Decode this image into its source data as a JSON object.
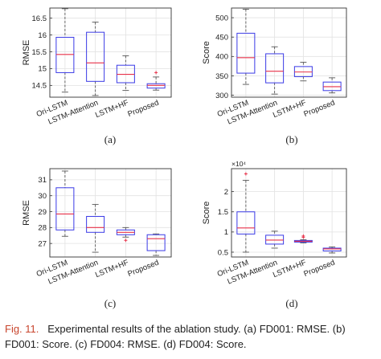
{
  "colors": {
    "box": "#3a3ae6",
    "median": "#e8324a",
    "whisker": "#555555",
    "outlier": "#e8324a",
    "caption_label": "#c8452d"
  },
  "caption": {
    "label": "Fig. 11.",
    "text": "Experimental results of the ablation study. (a) FD001: RMSE. (b) FD001: Score. (c) FD004: RMSE. (d) FD004: Score."
  },
  "chart_data": [
    {
      "type": "box",
      "panel": "(a)",
      "ylabel": "RMSE",
      "ylim": [
        14.15,
        16.8
      ],
      "yticks": [
        14.5,
        15,
        15.5,
        16,
        16.5
      ],
      "ytick_labels": [
        "14.5",
        "15",
        "15.5",
        "16",
        "16.5"
      ],
      "categories": [
        "Ori-LSTM",
        "LSTM-Attention",
        "LSTM+HF",
        "Proposed"
      ],
      "boxes": [
        {
          "min": 14.3,
          "q1": 14.88,
          "median": 15.42,
          "q3": 15.93,
          "max": 16.78,
          "outliers": []
        },
        {
          "min": 14.2,
          "q1": 14.62,
          "median": 15.17,
          "q3": 16.08,
          "max": 16.38,
          "outliers": []
        },
        {
          "min": 14.35,
          "q1": 14.58,
          "median": 14.83,
          "q3": 15.1,
          "max": 15.38,
          "outliers": []
        },
        {
          "min": 14.36,
          "q1": 14.42,
          "median": 14.5,
          "q3": 14.55,
          "max": 14.75,
          "outliers": [
            14.88
          ]
        }
      ]
    },
    {
      "type": "box",
      "panel": "(b)",
      "ylabel": "Score",
      "ylim": [
        295,
        525
      ],
      "yticks": [
        300,
        350,
        400,
        450,
        500
      ],
      "ytick_labels": [
        "300",
        "350",
        "400",
        "450",
        "500"
      ],
      "categories": [
        "Ori-LSTM",
        "LSTM-Attention",
        "LSTM+HF",
        "Proposed"
      ],
      "boxes": [
        {
          "min": 328,
          "q1": 357,
          "median": 397,
          "q3": 460,
          "max": 522,
          "outliers": []
        },
        {
          "min": 303,
          "q1": 332,
          "median": 362,
          "q3": 407,
          "max": 425,
          "outliers": []
        },
        {
          "min": 337,
          "q1": 348,
          "median": 360,
          "q3": 374,
          "max": 385,
          "outliers": []
        },
        {
          "min": 306,
          "q1": 312,
          "median": 322,
          "q3": 334,
          "max": 345,
          "outliers": []
        }
      ]
    },
    {
      "type": "box",
      "panel": "(c)",
      "ylabel": "RMSE",
      "ylim": [
        26.15,
        31.7
      ],
      "yticks": [
        27,
        28,
        29,
        30,
        31
      ],
      "ytick_labels": [
        "27",
        "28",
        "29",
        "30",
        "31"
      ],
      "categories": [
        "Ori-LSTM",
        "LSTM-Attention",
        "LSTM+HF",
        "Proposed"
      ],
      "boxes": [
        {
          "min": 27.45,
          "q1": 27.85,
          "median": 28.85,
          "q3": 30.5,
          "max": 31.55,
          "outliers": []
        },
        {
          "min": 26.45,
          "q1": 27.7,
          "median": 28.0,
          "q3": 28.7,
          "max": 29.45,
          "outliers": []
        },
        {
          "min": 27.4,
          "q1": 27.55,
          "median": 27.7,
          "q3": 27.85,
          "max": 28.0,
          "outliers": [
            27.2
          ]
        },
        {
          "min": 26.25,
          "q1": 26.55,
          "median": 27.3,
          "q3": 27.55,
          "max": 27.6,
          "outliers": []
        }
      ]
    },
    {
      "type": "box",
      "panel": "(d)",
      "ylabel": "Score",
      "ylim": [
        0.38,
        2.57
      ],
      "yticks": [
        0.5,
        1,
        1.5,
        2
      ],
      "ytick_labels": [
        "0.5",
        "1",
        "1.5",
        "2"
      ],
      "yexponent": "×10⁴",
      "categories": [
        "Ori-LSTM",
        "LSTM-Attention",
        "LSTM+HF",
        "Proposed"
      ],
      "boxes": [
        {
          "min": 0.5,
          "q1": 0.95,
          "median": 1.1,
          "q3": 1.5,
          "max": 2.28,
          "outliers": [
            2.44
          ]
        },
        {
          "min": 0.6,
          "q1": 0.7,
          "median": 0.8,
          "q3": 0.92,
          "max": 1.02,
          "outliers": []
        },
        {
          "min": 0.73,
          "q1": 0.75,
          "median": 0.77,
          "q3": 0.79,
          "max": 0.81,
          "outliers": [
            0.87,
            0.9
          ]
        },
        {
          "min": 0.48,
          "q1": 0.53,
          "median": 0.58,
          "q3": 0.6,
          "max": 0.63,
          "outliers": []
        }
      ]
    }
  ]
}
